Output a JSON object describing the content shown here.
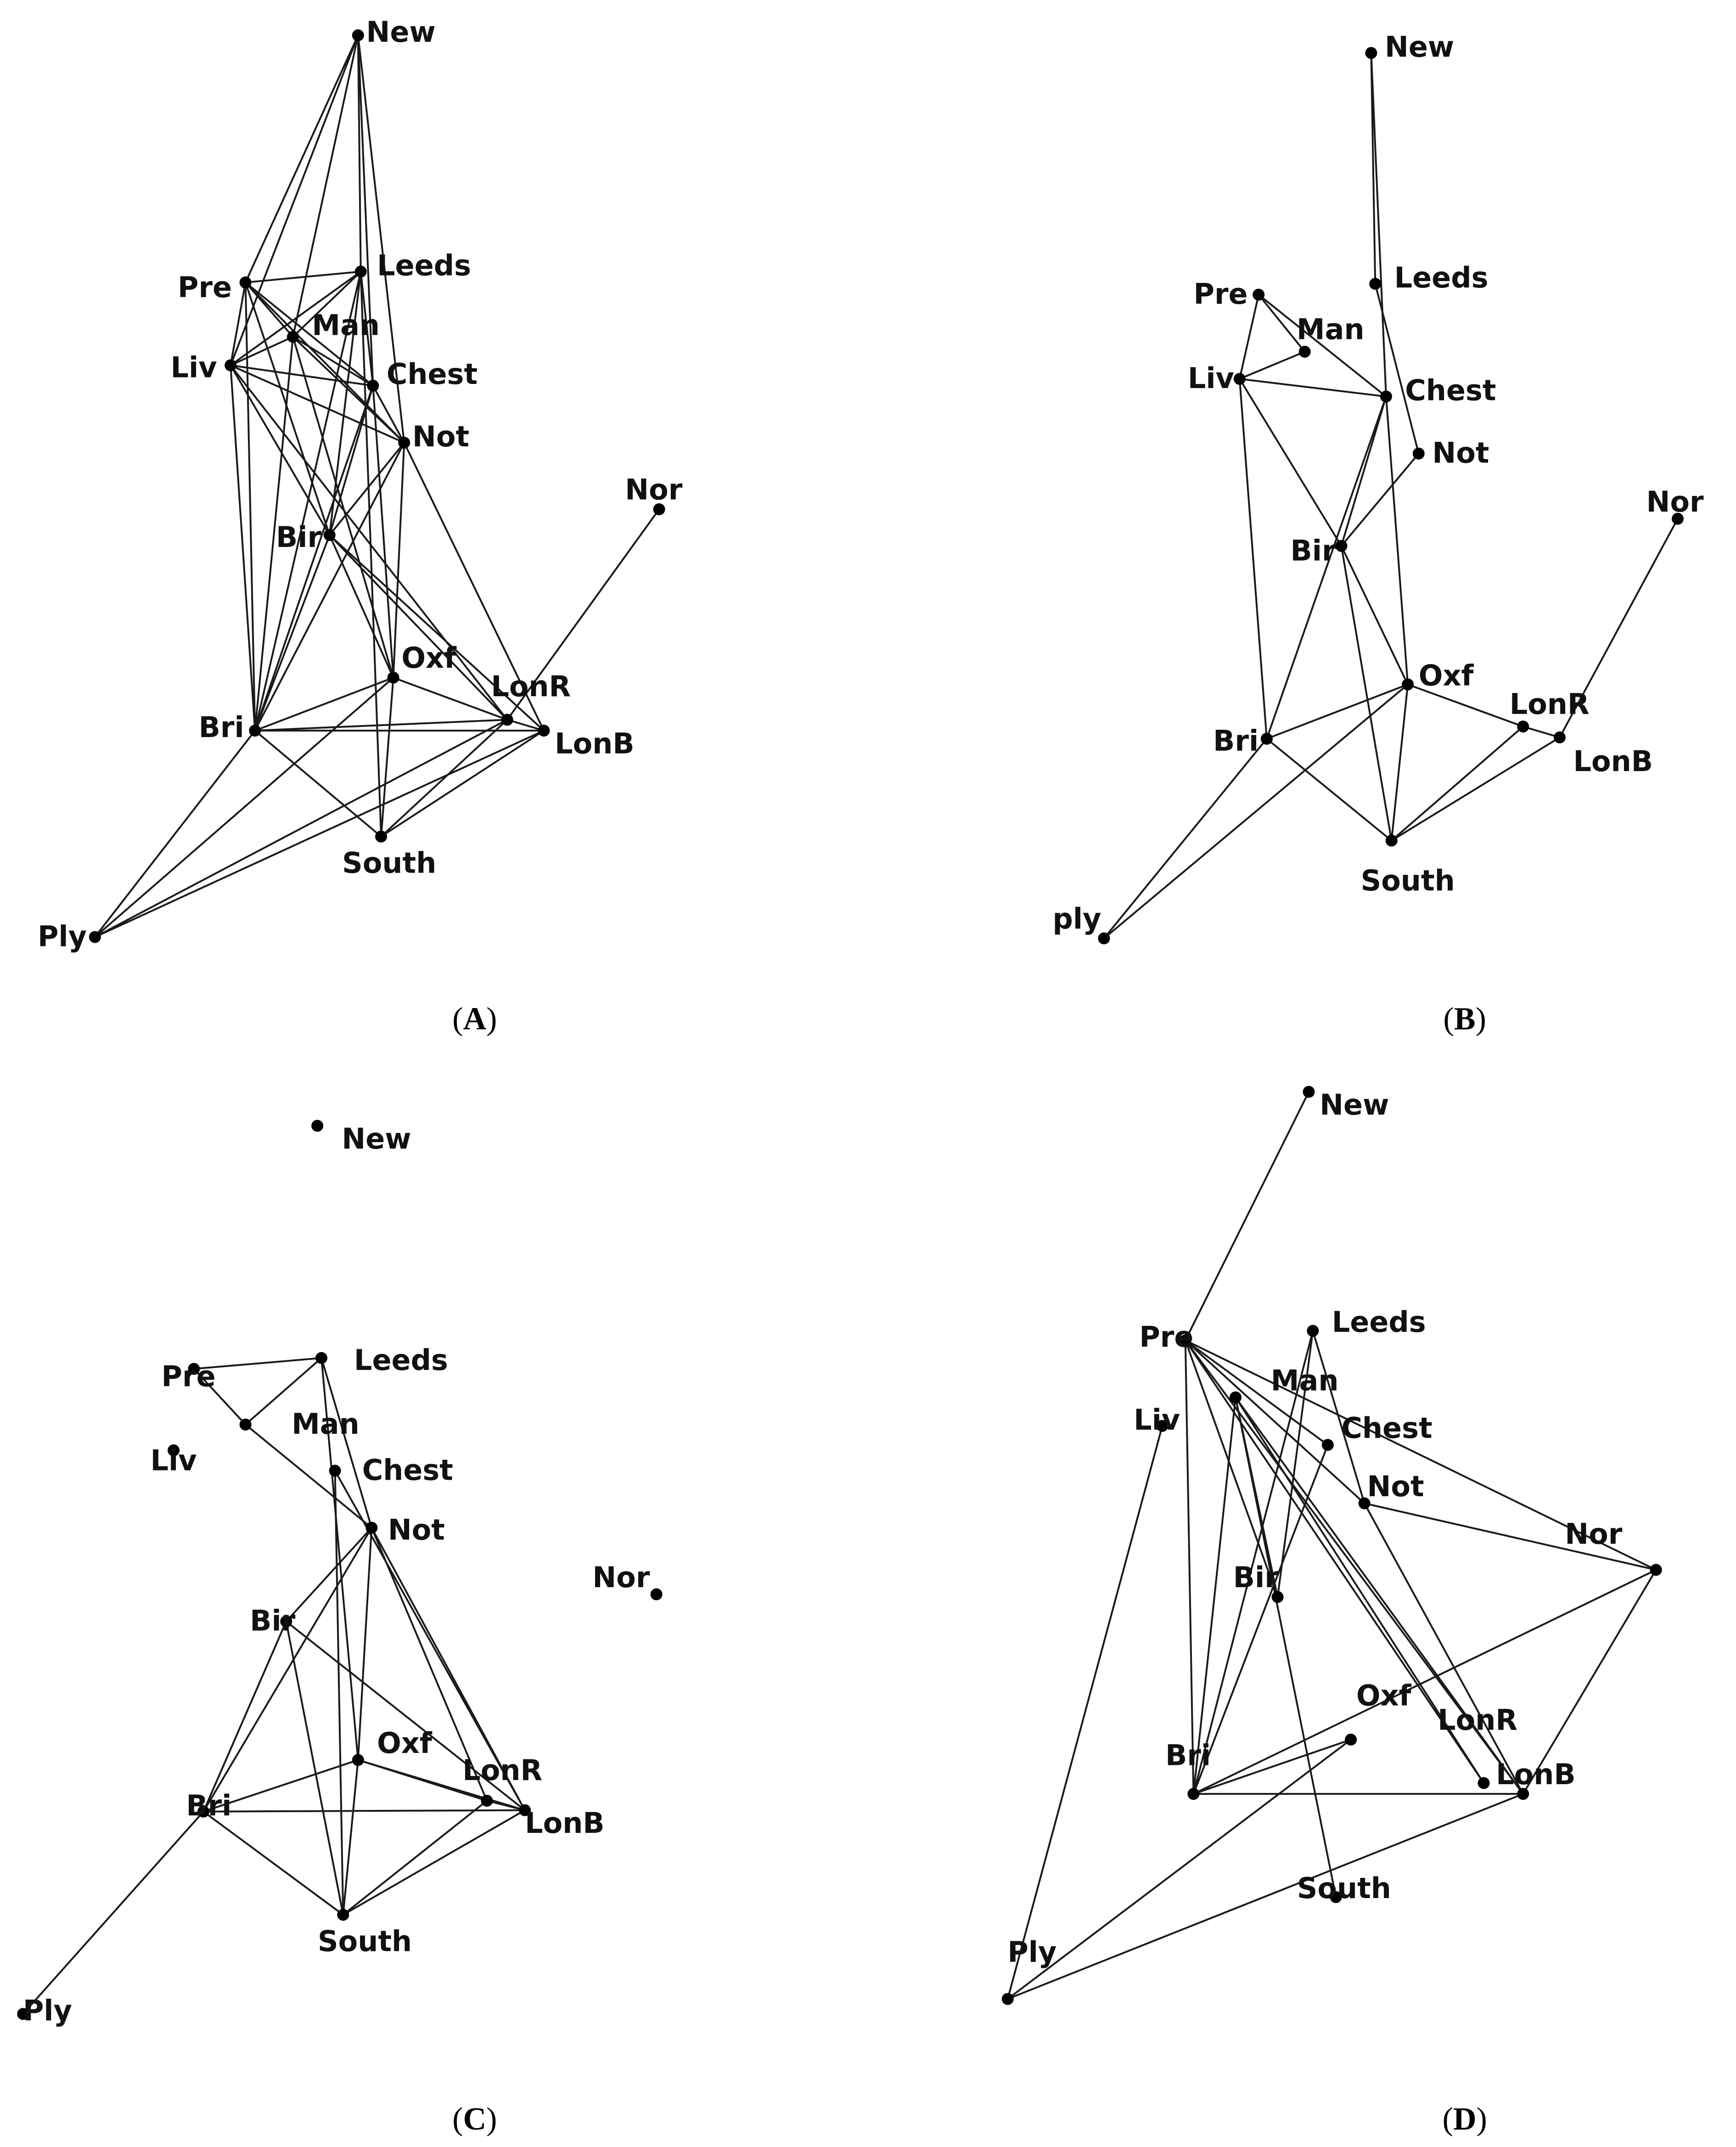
{
  "colors": {
    "edge": "#1a1a1a",
    "node": "#000000",
    "label": "#111111"
  },
  "panels": [
    {
      "caption_letter": "A",
      "nodes": {
        "New": "New",
        "Pre": "Pre",
        "Leeds": "Leeds",
        "Man": "Man",
        "Liv": "Liv",
        "Chest": "Chest",
        "Not": "Not",
        "Nor": "Nor",
        "Bir": "Bir",
        "Oxf": "Oxf",
        "LonR": "LonR",
        "Bri": "Bri",
        "LonB": "LonB",
        "South": "South",
        "Ply": "Ply"
      },
      "edges": [
        [
          "New",
          "Pre"
        ],
        [
          "New",
          "Liv"
        ],
        [
          "New",
          "Leeds"
        ],
        [
          "New",
          "Man"
        ],
        [
          "New",
          "Chest"
        ],
        [
          "New",
          "Not"
        ],
        [
          "Pre",
          "Leeds"
        ],
        [
          "Pre",
          "Man"
        ],
        [
          "Pre",
          "Liv"
        ],
        [
          "Pre",
          "Chest"
        ],
        [
          "Pre",
          "Not"
        ],
        [
          "Pre",
          "Bir"
        ],
        [
          "Pre",
          "Bri"
        ],
        [
          "Leeds",
          "Man"
        ],
        [
          "Leeds",
          "Liv"
        ],
        [
          "Leeds",
          "Chest"
        ],
        [
          "Leeds",
          "Bir"
        ],
        [
          "Leeds",
          "Bri"
        ],
        [
          "Leeds",
          "South"
        ],
        [
          "Man",
          "Chest"
        ],
        [
          "Man",
          "Not"
        ],
        [
          "Man",
          "Liv"
        ],
        [
          "Man",
          "Oxf"
        ],
        [
          "Man",
          "Bri"
        ],
        [
          "Liv",
          "Chest"
        ],
        [
          "Liv",
          "Not"
        ],
        [
          "Liv",
          "Bir"
        ],
        [
          "Liv",
          "Bri"
        ],
        [
          "Liv",
          "LonR"
        ],
        [
          "Chest",
          "Not"
        ],
        [
          "Chest",
          "Bir"
        ],
        [
          "Chest",
          "Bri"
        ],
        [
          "Chest",
          "Oxf"
        ],
        [
          "Not",
          "Bir"
        ],
        [
          "Not",
          "Bri"
        ],
        [
          "Not",
          "Oxf"
        ],
        [
          "Not",
          "LonB"
        ],
        [
          "Bir",
          "Bri"
        ],
        [
          "Bir",
          "LonR"
        ],
        [
          "Bir",
          "LonB"
        ],
        [
          "Bir",
          "Oxf"
        ],
        [
          "Oxf",
          "Bri"
        ],
        [
          "Oxf",
          "LonR"
        ],
        [
          "Oxf",
          "South"
        ],
        [
          "Oxf",
          "Ply"
        ],
        [
          "Bri",
          "LonR"
        ],
        [
          "Bri",
          "LonB"
        ],
        [
          "Bri",
          "South"
        ],
        [
          "Bri",
          "Ply"
        ],
        [
          "LonR",
          "LonB"
        ],
        [
          "LonR",
          "Nor"
        ],
        [
          "LonR",
          "South"
        ],
        [
          "LonR",
          "Ply"
        ],
        [
          "LonB",
          "Ply"
        ],
        [
          "LonB",
          "South"
        ]
      ]
    },
    {
      "caption_letter": "B",
      "nodes": {
        "New": "New",
        "Pre": "Pre",
        "Leeds": "Leeds",
        "Man": "Man",
        "Liv": "Liv",
        "Chest": "Chest",
        "Not": "Not",
        "Nor": "Nor",
        "Bir": "Bir",
        "Oxf": "Oxf",
        "LonR": "LonR",
        "Bri": "Bri",
        "LonB": "LonB",
        "South": "South",
        "Ply": "ply"
      },
      "edges": [
        [
          "New",
          "Leeds"
        ],
        [
          "New",
          "Chest"
        ],
        [
          "Leeds",
          "Not"
        ],
        [
          "Pre",
          "Man"
        ],
        [
          "Pre",
          "Liv"
        ],
        [
          "Pre",
          "Chest"
        ],
        [
          "Man",
          "Liv"
        ],
        [
          "Liv",
          "Chest"
        ],
        [
          "Liv",
          "Bir"
        ],
        [
          "Liv",
          "Bri"
        ],
        [
          "Chest",
          "Bir"
        ],
        [
          "Chest",
          "Bri"
        ],
        [
          "Chest",
          "Oxf"
        ],
        [
          "Not",
          "Bir"
        ],
        [
          "Bir",
          "Oxf"
        ],
        [
          "Bir",
          "South"
        ],
        [
          "Bri",
          "Oxf"
        ],
        [
          "Bri",
          "South"
        ],
        [
          "Bri",
          "Ply"
        ],
        [
          "Oxf",
          "Ply"
        ],
        [
          "Oxf",
          "South"
        ],
        [
          "Oxf",
          "LonR"
        ],
        [
          "LonR",
          "LonB"
        ],
        [
          "LonR",
          "South"
        ],
        [
          "LonB",
          "South"
        ],
        [
          "LonB",
          "Nor"
        ]
      ]
    },
    {
      "caption_letter": "C",
      "nodes": {
        "New": "New",
        "Pre": "Pre",
        "Leeds": "Leeds",
        "Man": "Man",
        "Liv": "Liv",
        "Chest": "Chest",
        "Not": "Not",
        "Nor": "Nor",
        "Bir": "Bir",
        "Oxf": "Oxf",
        "LonR": "LonR",
        "Bri": "Bri",
        "LonB": "LonB",
        "South": "South",
        "Ply": "Ply"
      },
      "edges": [
        [
          "Pre",
          "Leeds"
        ],
        [
          "Pre",
          "Man"
        ],
        [
          "Leeds",
          "Man"
        ],
        [
          "Leeds",
          "Not"
        ],
        [
          "Leeds",
          "Oxf"
        ],
        [
          "Man",
          "Not"
        ],
        [
          "Chest",
          "LonB"
        ],
        [
          "Chest",
          "South"
        ],
        [
          "Not",
          "Bir"
        ],
        [
          "Not",
          "Bri"
        ],
        [
          "Not",
          "Oxf"
        ],
        [
          "Not",
          "LonR"
        ],
        [
          "Not",
          "LonB"
        ],
        [
          "Bir",
          "Bri"
        ],
        [
          "Bir",
          "South"
        ],
        [
          "Bir",
          "LonB"
        ],
        [
          "Bri",
          "Oxf"
        ],
        [
          "Bri",
          "LonB"
        ],
        [
          "Bri",
          "South"
        ],
        [
          "Bri",
          "Ply"
        ],
        [
          "Oxf",
          "LonR"
        ],
        [
          "Oxf",
          "South"
        ],
        [
          "Oxf",
          "LonB"
        ],
        [
          "LonR",
          "LonB"
        ],
        [
          "LonR",
          "South"
        ],
        [
          "LonB",
          "South"
        ]
      ]
    },
    {
      "caption_letter": "D",
      "nodes": {
        "New": "New",
        "Pre": "Pre",
        "Leeds": "Leeds",
        "Man": "Man",
        "Liv": "Liv",
        "Chest": "Chest",
        "Not": "Not",
        "Nor": "Nor",
        "Bir": "Bir",
        "Oxf": "Oxf",
        "LonR": "LonR",
        "Bri": "Bri",
        "LonB": "LonB",
        "South": "South",
        "Ply": "Ply"
      },
      "edges": [
        [
          "Pre",
          "New"
        ],
        [
          "Pre",
          "Bri"
        ],
        [
          "Pre",
          "Bir"
        ],
        [
          "Pre",
          "Not"
        ],
        [
          "Pre",
          "LonR"
        ],
        [
          "Pre",
          "LonB"
        ],
        [
          "Pre",
          "Nor"
        ],
        [
          "Pre",
          "Chest"
        ],
        [
          "Leeds",
          "Bri"
        ],
        [
          "Leeds",
          "Bir"
        ],
        [
          "Leeds",
          "Not"
        ],
        [
          "Man",
          "Bir"
        ],
        [
          "Man",
          "South"
        ],
        [
          "Man",
          "LonR"
        ],
        [
          "Man",
          "LonB"
        ],
        [
          "Man",
          "Bri"
        ],
        [
          "Liv",
          "Ply"
        ],
        [
          "Chest",
          "Bri"
        ],
        [
          "Not",
          "Nor"
        ],
        [
          "Not",
          "LonB"
        ],
        [
          "Nor",
          "Bri"
        ],
        [
          "Nor",
          "LonB"
        ],
        [
          "Oxf",
          "Bri"
        ],
        [
          "Oxf",
          "Ply"
        ],
        [
          "Bri",
          "LonB"
        ],
        [
          "LonB",
          "Ply"
        ]
      ]
    }
  ]
}
